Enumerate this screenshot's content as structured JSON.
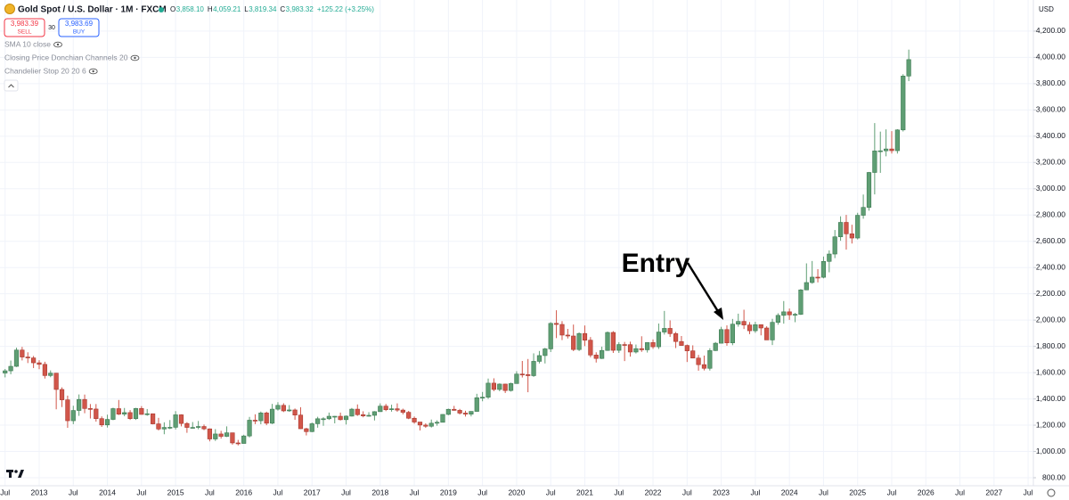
{
  "toolbar": {
    "title": "Gold Spot / U.S. Dollar · 1M · FXCM",
    "ohlc": [
      {
        "key": "O",
        "value": "3,858.10"
      },
      {
        "key": "H",
        "value": "4,059.21"
      },
      {
        "key": "L",
        "value": "3,819.34"
      },
      {
        "key": "C",
        "value": "3,983.32"
      }
    ],
    "change": "+125.22 (+3.25%)",
    "sell": {
      "price": "3,983.39",
      "label": "SELL"
    },
    "spread": "30",
    "buy": {
      "price": "3,983.69",
      "label": "BUY"
    },
    "indicators": [
      "SMA 10 close",
      "Closing Price Donchian Channels 20",
      "Chandelier Stop 20 20 6"
    ],
    "currency": "USD"
  },
  "chart_data": {
    "type": "candlestick",
    "up_color": "#5f9e74",
    "down_color": "#d1564a",
    "grid": true,
    "annotations": [
      {
        "text": "Entry"
      }
    ],
    "ylim": [
      739,
      4437
    ],
    "yticks": [
      {
        "value": 800,
        "label": "800.00"
      },
      {
        "value": 1000,
        "label": "1,000.00"
      },
      {
        "value": 1200,
        "label": "1,200.00"
      },
      {
        "value": 1400,
        "label": "1,400.00"
      },
      {
        "value": 1600,
        "label": "1,600.00"
      },
      {
        "value": 1800,
        "label": "1,800.00"
      },
      {
        "value": 2000,
        "label": "2,000.00"
      },
      {
        "value": 2200,
        "label": "2,200.00"
      },
      {
        "value": 2400,
        "label": "2,400.00"
      },
      {
        "value": 2600,
        "label": "2,600.00"
      },
      {
        "value": 2800,
        "label": "2,800.00"
      },
      {
        "value": 3000,
        "label": "3,000.00"
      },
      {
        "value": 3200,
        "label": "3,200.00"
      },
      {
        "value": 3400,
        "label": "3,400.00"
      },
      {
        "value": 3600,
        "label": "3,600.00"
      },
      {
        "value": 3800,
        "label": "3,800.00"
      },
      {
        "value": 4000,
        "label": "4,000.00"
      },
      {
        "value": 4200,
        "label": "4,200.00"
      }
    ],
    "xticks": [
      {
        "value": "2012-07",
        "label": "Jul"
      },
      {
        "value": "2013-01",
        "label": "2013"
      },
      {
        "value": "2013-07",
        "label": "Jul"
      },
      {
        "value": "2014-01",
        "label": "2014"
      },
      {
        "value": "2014-07",
        "label": "Jul"
      },
      {
        "value": "2015-01",
        "label": "2015"
      },
      {
        "value": "2015-07",
        "label": "Jul"
      },
      {
        "value": "2016-01",
        "label": "2016"
      },
      {
        "value": "2016-07",
        "label": "Jul"
      },
      {
        "value": "2017-01",
        "label": "2017"
      },
      {
        "value": "2017-07",
        "label": "Jul"
      },
      {
        "value": "2018-01",
        "label": "2018"
      },
      {
        "value": "2018-07",
        "label": "Jul"
      },
      {
        "value": "2019-01",
        "label": "2019"
      },
      {
        "value": "2019-07",
        "label": "Jul"
      },
      {
        "value": "2020-01",
        "label": "2020"
      },
      {
        "value": "2020-07",
        "label": "Jul"
      },
      {
        "value": "2021-01",
        "label": "2021"
      },
      {
        "value": "2021-07",
        "label": "Jul"
      },
      {
        "value": "2022-01",
        "label": "2022"
      },
      {
        "value": "2022-07",
        "label": "Jul"
      },
      {
        "value": "2023-01",
        "label": "2023"
      },
      {
        "value": "2023-07",
        "label": "Jul"
      },
      {
        "value": "2024-01",
        "label": "2024"
      },
      {
        "value": "2024-07",
        "label": "Jul"
      },
      {
        "value": "2025-01",
        "label": "2025"
      },
      {
        "value": "2025-07",
        "label": "Jul"
      },
      {
        "value": "2026-01",
        "label": "2026"
      },
      {
        "value": "2026-07",
        "label": "Jul"
      },
      {
        "value": "2027-01",
        "label": "2027"
      },
      {
        "value": "2027-07",
        "label": "Jul"
      }
    ],
    "x": [
      "2012-07",
      "2012-08",
      "2012-09",
      "2012-10",
      "2012-11",
      "2012-12",
      "2013-01",
      "2013-02",
      "2013-03",
      "2013-04",
      "2013-05",
      "2013-06",
      "2013-07",
      "2013-08",
      "2013-09",
      "2013-10",
      "2013-11",
      "2013-12",
      "2014-01",
      "2014-02",
      "2014-03",
      "2014-04",
      "2014-05",
      "2014-06",
      "2014-07",
      "2014-08",
      "2014-09",
      "2014-10",
      "2014-11",
      "2014-12",
      "2015-01",
      "2015-02",
      "2015-03",
      "2015-04",
      "2015-05",
      "2015-06",
      "2015-07",
      "2015-08",
      "2015-09",
      "2015-10",
      "2015-11",
      "2015-12",
      "2016-01",
      "2016-02",
      "2016-03",
      "2016-04",
      "2016-05",
      "2016-06",
      "2016-07",
      "2016-08",
      "2016-09",
      "2016-10",
      "2016-11",
      "2016-12",
      "2017-01",
      "2017-02",
      "2017-03",
      "2017-04",
      "2017-05",
      "2017-06",
      "2017-07",
      "2017-08",
      "2017-09",
      "2017-10",
      "2017-11",
      "2017-12",
      "2018-01",
      "2018-02",
      "2018-03",
      "2018-04",
      "2018-05",
      "2018-06",
      "2018-07",
      "2018-08",
      "2018-09",
      "2018-10",
      "2018-11",
      "2018-12",
      "2019-01",
      "2019-02",
      "2019-03",
      "2019-04",
      "2019-05",
      "2019-06",
      "2019-07",
      "2019-08",
      "2019-09",
      "2019-10",
      "2019-11",
      "2019-12",
      "2020-01",
      "2020-02",
      "2020-03",
      "2020-04",
      "2020-05",
      "2020-06",
      "2020-07",
      "2020-08",
      "2020-09",
      "2020-10",
      "2020-11",
      "2020-12",
      "2021-01",
      "2021-02",
      "2021-03",
      "2021-04",
      "2021-05",
      "2021-06",
      "2021-07",
      "2021-08",
      "2021-09",
      "2021-10",
      "2021-11",
      "2021-12",
      "2022-01",
      "2022-02",
      "2022-03",
      "2022-04",
      "2022-05",
      "2022-06",
      "2022-07",
      "2022-08",
      "2022-09",
      "2022-10",
      "2022-11",
      "2022-12",
      "2023-01",
      "2023-02",
      "2023-03",
      "2023-04",
      "2023-05",
      "2023-06",
      "2023-07",
      "2023-08",
      "2023-09",
      "2023-10",
      "2023-11",
      "2023-12",
      "2024-01",
      "2024-02",
      "2024-03",
      "2024-04",
      "2024-05",
      "2024-06",
      "2024-07",
      "2024-08",
      "2024-09",
      "2024-10",
      "2024-11",
      "2024-12",
      "2025-01",
      "2025-02",
      "2025-03",
      "2025-04",
      "2025-05",
      "2025-06",
      "2025-07",
      "2025-08",
      "2025-09",
      "2025-10"
    ],
    "values": [
      [
        1597,
        1628,
        1564,
        1614
      ],
      [
        1614,
        1692,
        1588,
        1648
      ],
      [
        1648,
        1790,
        1643,
        1772
      ],
      [
        1772,
        1796,
        1693,
        1719
      ],
      [
        1719,
        1755,
        1673,
        1712
      ],
      [
        1712,
        1727,
        1635,
        1675
      ],
      [
        1675,
        1695,
        1626,
        1663
      ],
      [
        1663,
        1683,
        1555,
        1578
      ],
      [
        1578,
        1617,
        1565,
        1596
      ],
      [
        1596,
        1598,
        1321,
        1472
      ],
      [
        1472,
        1488,
        1338,
        1393
      ],
      [
        1393,
        1425,
        1180,
        1234
      ],
      [
        1234,
        1348,
        1208,
        1312
      ],
      [
        1312,
        1434,
        1271,
        1396
      ],
      [
        1396,
        1433,
        1291,
        1327
      ],
      [
        1327,
        1361,
        1251,
        1323
      ],
      [
        1323,
        1361,
        1227,
        1250
      ],
      [
        1250,
        1267,
        1187,
        1202
      ],
      [
        1202,
        1280,
        1182,
        1244
      ],
      [
        1244,
        1333,
        1238,
        1326
      ],
      [
        1326,
        1392,
        1277,
        1284
      ],
      [
        1284,
        1331,
        1268,
        1296
      ],
      [
        1296,
        1315,
        1240,
        1250
      ],
      [
        1250,
        1332,
        1240,
        1327
      ],
      [
        1327,
        1345,
        1281,
        1282
      ],
      [
        1282,
        1323,
        1272,
        1287
      ],
      [
        1287,
        1289,
        1206,
        1210
      ],
      [
        1210,
        1256,
        1160,
        1171
      ],
      [
        1171,
        1222,
        1131,
        1183
      ],
      [
        1183,
        1239,
        1170,
        1184
      ],
      [
        1184,
        1307,
        1167,
        1279
      ],
      [
        1279,
        1283,
        1191,
        1213
      ],
      [
        1213,
        1223,
        1142,
        1183
      ],
      [
        1183,
        1224,
        1175,
        1183
      ],
      [
        1183,
        1232,
        1169,
        1190
      ],
      [
        1190,
        1205,
        1162,
        1172
      ],
      [
        1172,
        1175,
        1077,
        1095
      ],
      [
        1095,
        1170,
        1080,
        1133
      ],
      [
        1133,
        1157,
        1098,
        1115
      ],
      [
        1115,
        1191,
        1110,
        1142
      ],
      [
        1142,
        1143,
        1052,
        1065
      ],
      [
        1065,
        1088,
        1046,
        1061
      ],
      [
        1061,
        1127,
        1060,
        1118
      ],
      [
        1118,
        1263,
        1107,
        1238
      ],
      [
        1238,
        1283,
        1208,
        1234
      ],
      [
        1234,
        1304,
        1207,
        1293
      ],
      [
        1293,
        1303,
        1200,
        1215
      ],
      [
        1215,
        1362,
        1208,
        1322
      ],
      [
        1322,
        1375,
        1311,
        1351
      ],
      [
        1351,
        1367,
        1300,
        1309
      ],
      [
        1309,
        1353,
        1302,
        1316
      ],
      [
        1316,
        1327,
        1241,
        1277
      ],
      [
        1277,
        1337,
        1171,
        1173
      ],
      [
        1173,
        1180,
        1122,
        1151
      ],
      [
        1151,
        1220,
        1147,
        1211
      ],
      [
        1211,
        1264,
        1181,
        1249
      ],
      [
        1249,
        1261,
        1195,
        1249
      ],
      [
        1249,
        1296,
        1240,
        1268
      ],
      [
        1268,
        1270,
        1214,
        1268
      ],
      [
        1268,
        1296,
        1236,
        1242
      ],
      [
        1242,
        1274,
        1205,
        1269
      ],
      [
        1269,
        1331,
        1266,
        1322
      ],
      [
        1322,
        1358,
        1271,
        1280
      ],
      [
        1280,
        1306,
        1260,
        1271
      ],
      [
        1271,
        1299,
        1265,
        1275
      ],
      [
        1275,
        1307,
        1236,
        1303
      ],
      [
        1303,
        1366,
        1302,
        1345
      ],
      [
        1345,
        1362,
        1307,
        1318
      ],
      [
        1318,
        1356,
        1303,
        1325
      ],
      [
        1325,
        1366,
        1302,
        1315
      ],
      [
        1315,
        1326,
        1282,
        1298
      ],
      [
        1298,
        1309,
        1246,
        1253
      ],
      [
        1253,
        1266,
        1211,
        1224
      ],
      [
        1224,
        1225,
        1160,
        1201
      ],
      [
        1201,
        1214,
        1180,
        1192
      ],
      [
        1192,
        1243,
        1182,
        1215
      ],
      [
        1215,
        1237,
        1196,
        1222
      ],
      [
        1222,
        1284,
        1221,
        1282
      ],
      [
        1282,
        1326,
        1276,
        1321
      ],
      [
        1321,
        1347,
        1310,
        1313
      ],
      [
        1313,
        1324,
        1281,
        1292
      ],
      [
        1292,
        1310,
        1266,
        1284
      ],
      [
        1284,
        1306,
        1267,
        1305
      ],
      [
        1305,
        1439,
        1302,
        1409
      ],
      [
        1409,
        1453,
        1382,
        1413
      ],
      [
        1413,
        1555,
        1400,
        1520
      ],
      [
        1520,
        1557,
        1459,
        1472
      ],
      [
        1472,
        1518,
        1459,
        1513
      ],
      [
        1513,
        1516,
        1445,
        1464
      ],
      [
        1464,
        1524,
        1456,
        1517
      ],
      [
        1517,
        1611,
        1517,
        1589
      ],
      [
        1589,
        1689,
        1563,
        1585
      ],
      [
        1585,
        1704,
        1451,
        1577
      ],
      [
        1577,
        1747,
        1568,
        1686
      ],
      [
        1686,
        1765,
        1670,
        1730
      ],
      [
        1730,
        1789,
        1670,
        1781
      ],
      [
        1781,
        1984,
        1757,
        1975
      ],
      [
        1975,
        2075,
        1863,
        1967
      ],
      [
        1967,
        1992,
        1848,
        1886
      ],
      [
        1886,
        1933,
        1860,
        1879
      ],
      [
        1879,
        1966,
        1764,
        1776
      ],
      [
        1776,
        1906,
        1765,
        1898
      ],
      [
        1898,
        1959,
        1802,
        1847
      ],
      [
        1847,
        1871,
        1717,
        1734
      ],
      [
        1734,
        1755,
        1677,
        1708
      ],
      [
        1708,
        1798,
        1704,
        1769
      ],
      [
        1769,
        1913,
        1766,
        1906
      ],
      [
        1906,
        1916,
        1750,
        1770
      ],
      [
        1770,
        1832,
        1750,
        1814
      ],
      [
        1814,
        1834,
        1688,
        1813
      ],
      [
        1813,
        1836,
        1722,
        1757
      ],
      [
        1757,
        1814,
        1746,
        1783
      ],
      [
        1783,
        1877,
        1758,
        1774
      ],
      [
        1774,
        1831,
        1753,
        1829
      ],
      [
        1829,
        1853,
        1781,
        1797
      ],
      [
        1797,
        1974,
        1780,
        1909
      ],
      [
        1909,
        2070,
        1890,
        1937
      ],
      [
        1937,
        1998,
        1872,
        1897
      ],
      [
        1897,
        1910,
        1787,
        1837
      ],
      [
        1837,
        1879,
        1805,
        1807
      ],
      [
        1807,
        1814,
        1681,
        1766
      ],
      [
        1766,
        1808,
        1709,
        1711
      ],
      [
        1711,
        1735,
        1615,
        1661
      ],
      [
        1661,
        1730,
        1617,
        1633
      ],
      [
        1633,
        1786,
        1616,
        1768
      ],
      [
        1768,
        1833,
        1765,
        1824
      ],
      [
        1824,
        1949,
        1823,
        1928
      ],
      [
        1928,
        1960,
        1805,
        1827
      ],
      [
        1827,
        2009,
        1809,
        1969
      ],
      [
        1969,
        2049,
        1950,
        1990
      ],
      [
        1990,
        2079,
        1932,
        1963
      ],
      [
        1963,
        1985,
        1893,
        1919
      ],
      [
        1919,
        1987,
        1903,
        1965
      ],
      [
        1965,
        1966,
        1884,
        1940
      ],
      [
        1940,
        1953,
        1849,
        1849
      ],
      [
        1849,
        2010,
        1810,
        1983
      ],
      [
        1983,
        2052,
        1965,
        2036
      ],
      [
        2036,
        2145,
        1973,
        2063
      ],
      [
        2063,
        2088,
        2002,
        2040
      ],
      [
        2040,
        2055,
        1984,
        2044
      ],
      [
        2044,
        2236,
        2039,
        2230
      ],
      [
        2230,
        2432,
        2228,
        2286
      ],
      [
        2286,
        2450,
        2277,
        2327
      ],
      [
        2327,
        2388,
        2287,
        2326
      ],
      [
        2326,
        2484,
        2318,
        2447
      ],
      [
        2447,
        2531,
        2364,
        2503
      ],
      [
        2503,
        2686,
        2472,
        2634
      ],
      [
        2634,
        2790,
        2604,
        2744
      ],
      [
        2744,
        2801,
        2537,
        2657
      ],
      [
        2657,
        2726,
        2583,
        2625
      ],
      [
        2625,
        2817,
        2614,
        2798
      ],
      [
        2798,
        2956,
        2772,
        2858
      ],
      [
        2858,
        3128,
        2833,
        3124
      ],
      [
        3124,
        3500,
        2957,
        3288
      ],
      [
        3288,
        3435,
        3121,
        3289
      ],
      [
        3289,
        3452,
        3247,
        3303
      ],
      [
        3303,
        3439,
        3268,
        3290
      ],
      [
        3290,
        3453,
        3268,
        3448
      ],
      [
        3448,
        3872,
        3436,
        3858
      ],
      [
        3858.1,
        4059.21,
        3819.34,
        3983.32
      ]
    ]
  }
}
